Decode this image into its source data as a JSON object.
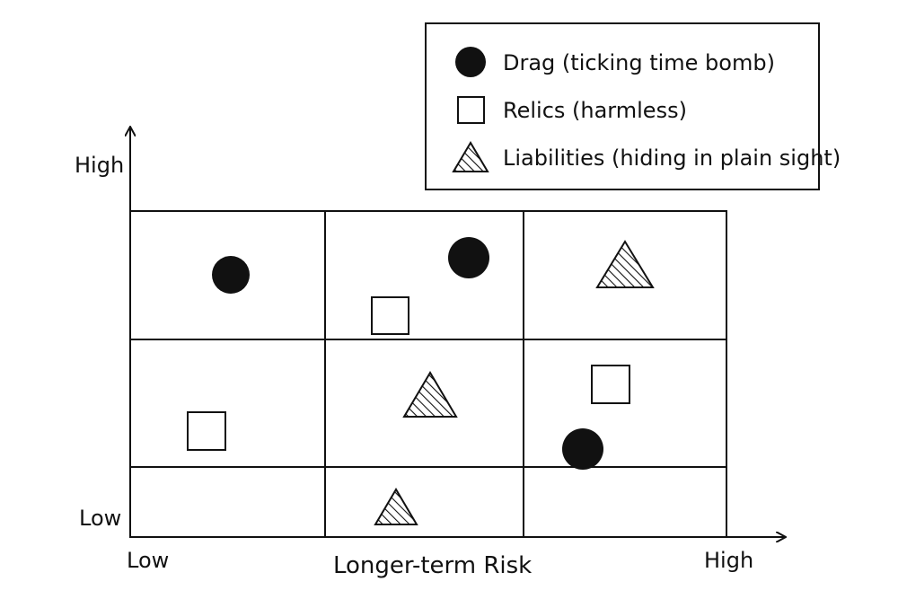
{
  "legend": {
    "items": [
      {
        "label": "Drag (ticking time bomb)",
        "icon": "filled-circle"
      },
      {
        "label": "Relics (harmless)",
        "icon": "hollow-square"
      },
      {
        "label": "Liabilities (hiding in plain sight)",
        "icon": "hatched-triangle"
      }
    ]
  },
  "axes": {
    "x_title": "Longer-term Risk",
    "x_low": "Low",
    "x_high": "High",
    "y_low": "Low",
    "y_high": "High"
  },
  "grid": {
    "columns": 3,
    "rows": 3
  },
  "items": [
    {
      "category": "Drag (ticking time bomb)",
      "cell": "top-left"
    },
    {
      "category": "Drag (ticking time bomb)",
      "cell": "top-middle"
    },
    {
      "category": "Relics (harmless)",
      "cell": "top-middle"
    },
    {
      "category": "Liabilities (hiding in plain sight)",
      "cell": "top-right"
    },
    {
      "category": "Relics (harmless)",
      "cell": "middle-left"
    },
    {
      "category": "Liabilities (hiding in plain sight)",
      "cell": "middle-middle"
    },
    {
      "category": "Relics (harmless)",
      "cell": "middle-right"
    },
    {
      "category": "Drag (ticking time bomb)",
      "cell": "middle-right"
    },
    {
      "category": "Liabilities (hiding in plain sight)",
      "cell": "bottom-middle"
    }
  ],
  "colors": {
    "ink": "#111111",
    "paper": "#ffffff"
  }
}
